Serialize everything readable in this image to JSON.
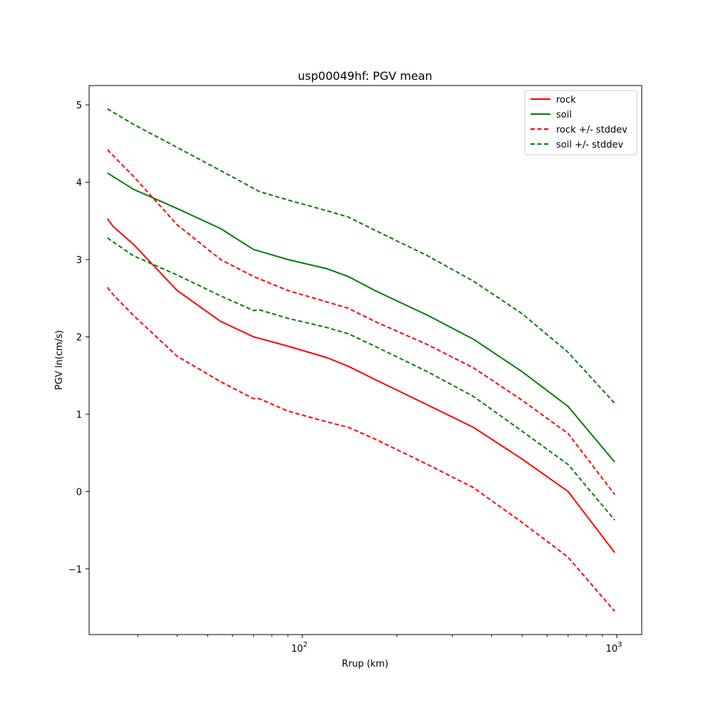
{
  "chart_data": {
    "type": "line",
    "title": "usp00049hf: PGV mean",
    "xlabel": "Rrup (km)",
    "ylabel": "PGV ln(cm/s)",
    "x_scale": "log",
    "xlim": [
      21,
      1200
    ],
    "ylim": [
      -1.85,
      5.25
    ],
    "y_ticks": [
      -1,
      0,
      1,
      2,
      3,
      4,
      5
    ],
    "y_tick_labels": [
      "−1",
      "0",
      "1",
      "2",
      "3",
      "4",
      "5"
    ],
    "x_major_ticks": [
      100,
      1000
    ],
    "x_tick_labels": [
      {
        "base": "10",
        "exp": "2"
      },
      {
        "base": "10",
        "exp": "3"
      }
    ],
    "x_minor_ticks": [
      30,
      40,
      50,
      60,
      70,
      80,
      90,
      200,
      300,
      400,
      500,
      600,
      700,
      800,
      900
    ],
    "grid": false,
    "legend_position": "top-right",
    "series": [
      {
        "name": "rock",
        "color": "#ff0000",
        "style": "solid",
        "x": [
          24,
          25,
          29,
          40,
          55,
          70,
          90,
          120,
          140,
          170,
          250,
          350,
          500,
          700,
          985
        ],
        "y": [
          3.53,
          3.43,
          3.2,
          2.6,
          2.2,
          2.0,
          1.88,
          1.73,
          1.62,
          1.45,
          1.12,
          0.83,
          0.42,
          0.0,
          -0.79
        ]
      },
      {
        "name": "soil",
        "color": "#008000",
        "style": "solid",
        "x": [
          24,
          29,
          40,
          55,
          70,
          90,
          120,
          140,
          170,
          250,
          350,
          500,
          700,
          985
        ],
        "y": [
          4.12,
          3.91,
          3.66,
          3.4,
          3.13,
          3.0,
          2.88,
          2.78,
          2.6,
          2.28,
          1.97,
          1.55,
          1.1,
          0.38
        ]
      },
      {
        "name": "rock +/- stddev",
        "color": "#ff0000",
        "style": "dashed",
        "x": [
          24,
          29,
          40,
          55,
          70,
          73,
          90,
          120,
          140,
          170,
          250,
          350,
          500,
          700,
          985
        ],
        "y": [
          4.42,
          4.08,
          3.45,
          3.0,
          2.78,
          2.75,
          2.6,
          2.45,
          2.37,
          2.2,
          1.9,
          1.6,
          1.18,
          0.75,
          -0.04
        ]
      },
      {
        "name": "",
        "color": "#ff0000",
        "style": "dashed",
        "x": [
          24,
          25,
          29,
          40,
          55,
          70,
          73,
          90,
          120,
          140,
          170,
          250,
          350,
          500,
          700,
          985
        ],
        "y": [
          2.64,
          2.55,
          2.28,
          1.75,
          1.42,
          1.2,
          1.2,
          1.04,
          0.9,
          0.83,
          0.68,
          0.35,
          0.05,
          -0.4,
          -0.85,
          -1.55
        ]
      },
      {
        "name": "soil +/- stddev",
        "color": "#008000",
        "style": "dashed",
        "x": [
          24,
          29,
          40,
          55,
          70,
          73,
          90,
          120,
          140,
          170,
          250,
          350,
          500,
          700,
          985
        ],
        "y": [
          4.95,
          4.75,
          4.45,
          4.15,
          3.92,
          3.88,
          3.77,
          3.63,
          3.55,
          3.38,
          3.05,
          2.72,
          2.3,
          1.8,
          1.14
        ]
      },
      {
        "name": "",
        "color": "#008000",
        "style": "dashed",
        "x": [
          24,
          29,
          40,
          55,
          70,
          73,
          90,
          120,
          140,
          170,
          250,
          350,
          500,
          700,
          985
        ],
        "y": [
          3.28,
          3.05,
          2.8,
          2.53,
          2.34,
          2.35,
          2.24,
          2.12,
          2.04,
          1.88,
          1.55,
          1.23,
          0.78,
          0.35,
          -0.37
        ]
      }
    ],
    "legend": [
      {
        "label": "rock",
        "color": "#ff0000",
        "style": "solid"
      },
      {
        "label": "soil",
        "color": "#008000",
        "style": "solid"
      },
      {
        "label": "rock +/- stddev",
        "color": "#ff0000",
        "style": "dashed"
      },
      {
        "label": "soil +/- stddev",
        "color": "#008000",
        "style": "dashed"
      }
    ]
  }
}
